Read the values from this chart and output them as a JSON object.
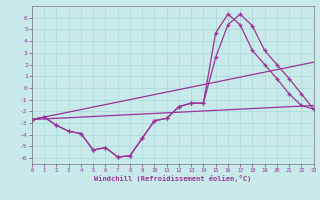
{
  "background_color": "#c8eaea",
  "grid_color": "#a8d8d8",
  "line_color": "#993399",
  "xlim": [
    0,
    23
  ],
  "ylim": [
    -6.5,
    7.0
  ],
  "xlabel": "Windchill (Refroidissement éolien,°C)",
  "yticks": [
    6,
    5,
    4,
    3,
    2,
    1,
    0,
    -1,
    -2,
    -3,
    -4,
    -5,
    -6
  ],
  "xticks": [
    0,
    1,
    2,
    3,
    4,
    5,
    6,
    7,
    8,
    9,
    10,
    11,
    12,
    13,
    14,
    15,
    16,
    17,
    18,
    19,
    20,
    21,
    22,
    23
  ],
  "line1_x": [
    0,
    1,
    2,
    3,
    4,
    5,
    6,
    7,
    8,
    9,
    10,
    11,
    12,
    13,
    14,
    15,
    16,
    17,
    18,
    19,
    20,
    21,
    22,
    23
  ],
  "line1_y": [
    -2.7,
    -2.5,
    -3.2,
    -3.7,
    -3.9,
    -5.3,
    -5.1,
    -5.9,
    -5.8,
    -4.3,
    -2.8,
    -2.6,
    -1.6,
    -1.3,
    -1.3,
    2.6,
    5.4,
    6.3,
    5.3,
    3.2,
    2.0,
    0.8,
    -0.5,
    -1.8
  ],
  "line2_x": [
    0,
    1,
    2,
    3,
    4,
    5,
    6,
    7,
    8,
    9,
    10,
    11,
    12,
    13,
    14,
    15,
    16,
    17,
    18,
    19,
    20,
    21,
    22,
    23
  ],
  "line2_y": [
    -2.7,
    -2.5,
    -3.2,
    -3.7,
    -3.9,
    -5.3,
    -5.1,
    -5.9,
    -5.8,
    -4.3,
    -2.8,
    -2.6,
    -1.6,
    -1.3,
    -1.3,
    4.7,
    6.3,
    5.4,
    3.2,
    2.0,
    0.8,
    -0.5,
    -1.5,
    -1.8
  ],
  "line3_x": [
    0,
    23
  ],
  "line3_y": [
    -2.7,
    -1.5
  ],
  "line4_x": [
    0,
    23
  ],
  "line4_y": [
    -2.7,
    2.2
  ],
  "figsize": [
    3.2,
    2.0
  ],
  "dpi": 100
}
